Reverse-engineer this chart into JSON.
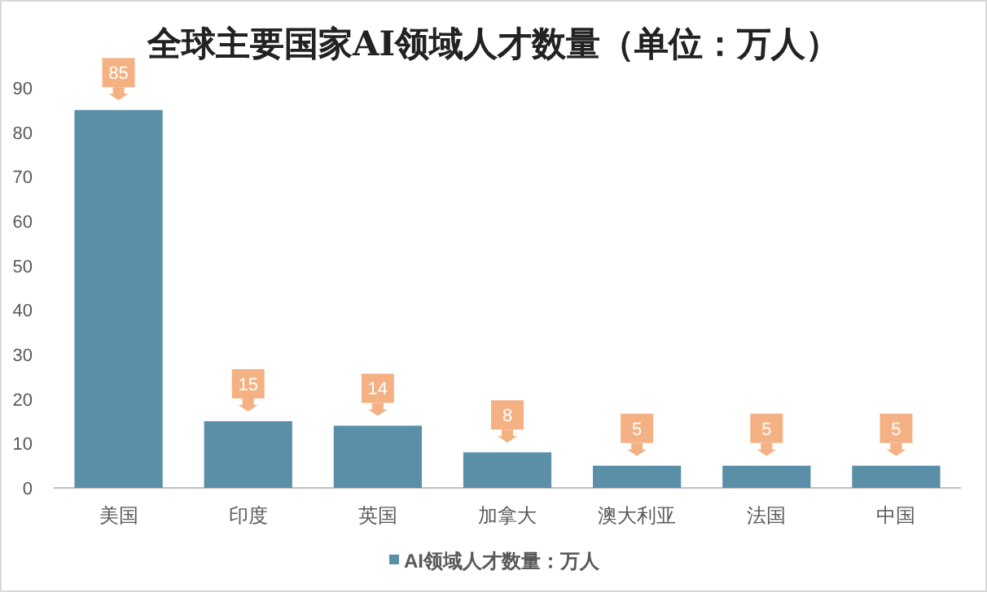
{
  "chart_data": {
    "type": "bar",
    "title": "全球主要国家AI领域人才数量（单位：万人）",
    "categories": [
      "美国",
      "印度",
      "英国",
      "加拿大",
      "澳大利亚",
      "法国",
      "中国"
    ],
    "series": [
      {
        "name": "AI领域人才数量：万人",
        "color": "#5b8fa8",
        "values": [
          85,
          15,
          14,
          8,
          5,
          5,
          5
        ]
      }
    ],
    "ylim": [
      0,
      90
    ],
    "yticks": [
      0,
      10,
      20,
      30,
      40,
      50,
      60,
      70,
      80,
      90
    ],
    "data_labels": true,
    "legend": "bottom",
    "grid": false
  }
}
